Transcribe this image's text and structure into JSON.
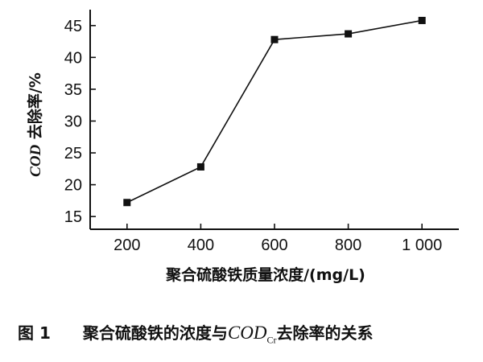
{
  "chart_data": {
    "type": "line",
    "x": [
      200,
      400,
      600,
      800,
      1000
    ],
    "series": [
      {
        "values": [
          17.2,
          22.8,
          42.8,
          43.7,
          45.8
        ],
        "marker": "square",
        "color": "#111111"
      }
    ],
    "xticks": [
      200,
      400,
      600,
      800,
      1000
    ],
    "xtick_labels": [
      "200",
      "400",
      "600",
      "800",
      "1 000"
    ],
    "yticks": [
      15,
      20,
      25,
      30,
      35,
      40,
      45
    ],
    "xlim": [
      100,
      1100
    ],
    "ylim": [
      13,
      47.5
    ],
    "xlabel": "聚合硫酸铁质量浓度/(mg/L)",
    "ylabel_prefix": "COD",
    "ylabel_rest": " 去除率/%",
    "grid": false
  },
  "caption": {
    "figure_number": "图 1",
    "text_before": "聚合硫酸铁的浓度与",
    "cod": "COD",
    "cod_subscript": "Cr",
    "text_after": "去除率的关系"
  }
}
